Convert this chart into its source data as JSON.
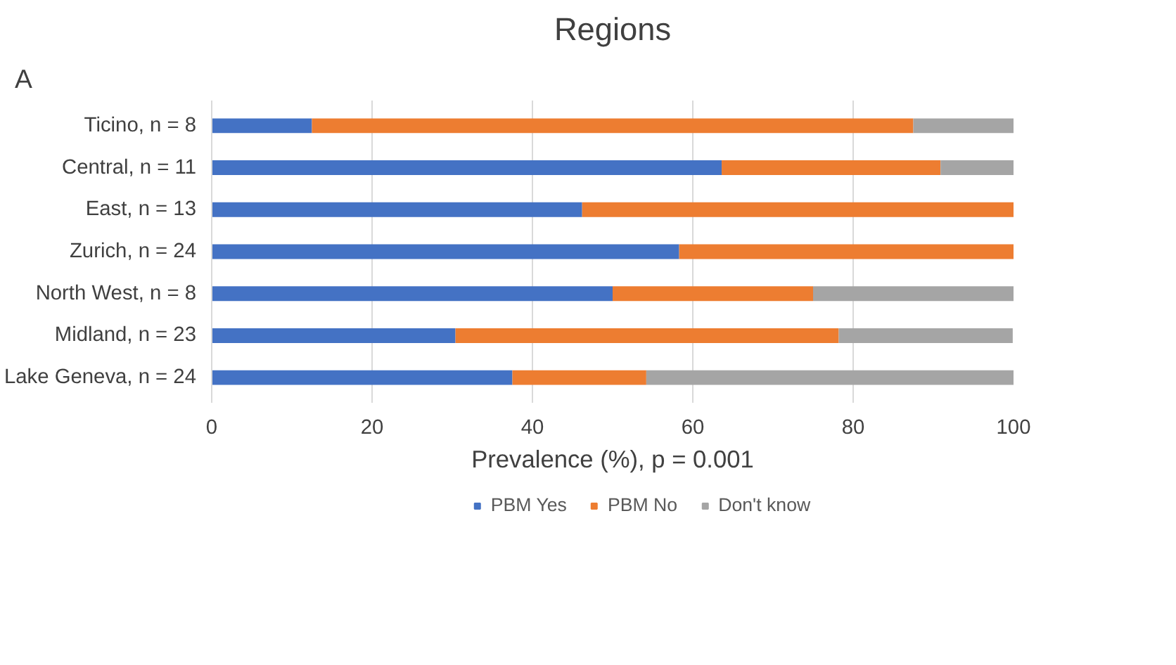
{
  "chart_data": {
    "type": "bar",
    "orientation": "horizontal",
    "stacked": true,
    "title": "Regions",
    "xlabel": "Prevalence (%), p = 0.001",
    "annotations": [
      "A"
    ],
    "categories": [
      "Ticino, n = 8",
      "Central, n = 11",
      "East, n = 13",
      "Zurich, n = 24",
      "North West, n = 8",
      "Midland, n = 23",
      "Lake Geneva, n = 24"
    ],
    "series": [
      {
        "name": "PBM Yes",
        "color": "#4472c4",
        "values": [
          12.5,
          63.6,
          46.2,
          58.3,
          50.0,
          30.4,
          37.5
        ]
      },
      {
        "name": "PBM No",
        "color": "#ed7d31",
        "values": [
          75.0,
          27.3,
          53.8,
          41.7,
          25.0,
          47.8,
          16.7
        ]
      },
      {
        "name": "Don't know",
        "color": "#a5a5a5",
        "values": [
          12.5,
          9.1,
          0,
          0,
          25.0,
          21.7,
          45.8
        ]
      }
    ],
    "xlim": [
      0,
      100
    ],
    "xticks": [
      0,
      20,
      40,
      60,
      80,
      100
    ],
    "grid": "x",
    "legend": "bottom"
  }
}
